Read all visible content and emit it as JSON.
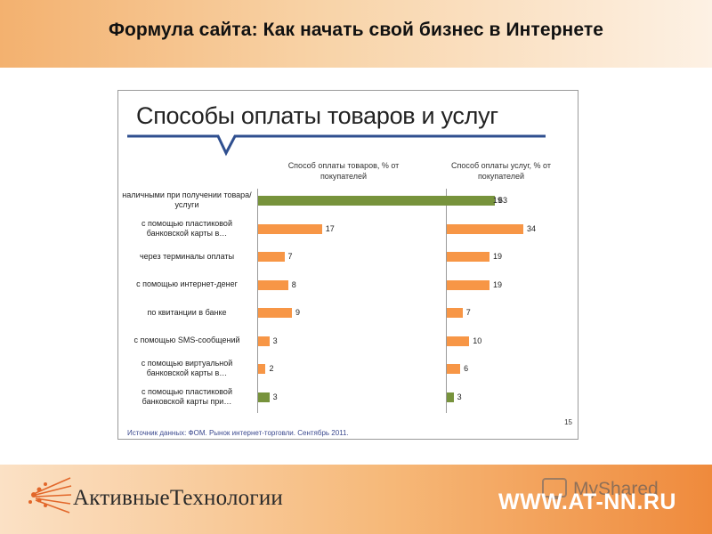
{
  "slide": {
    "title": "Формула сайта: Как начать свой бизнес в Интернете",
    "brand_text": "АктивныеТехнологии",
    "url": "WWW.AT-NN.RU",
    "watermark": "MyShared",
    "colors": {
      "accent_orange": "#f79646",
      "accent_green": "#77933c",
      "callout_blue": "#2f4f8f"
    }
  },
  "chart_data": {
    "type": "bar",
    "orientation": "horizontal",
    "title": "Способы оплаты товаров и услуг",
    "categories": [
      "наличными при получении товара/услуги",
      "с помощью пластиковой банковской карты в…",
      "через терминалы оплаты",
      "с помощью интернет-денег",
      "по квитанции в банке",
      "с помощью SMS-сообщений",
      "с помощью виртуальной банковской карты в…",
      "с помощью пластиковой банковской карты при…"
    ],
    "series": [
      {
        "name": "Способ оплаты товаров, % от покупателей",
        "values": [
          63,
          17,
          7,
          8,
          9,
          3,
          2,
          3
        ],
        "colors": [
          "#77933c",
          "#f79646",
          "#f79646",
          "#f79646",
          "#f79646",
          "#f79646",
          "#f79646",
          "#77933c"
        ]
      },
      {
        "name": "Способ оплаты услуг, % от покупателей",
        "values": [
          19,
          34,
          19,
          19,
          7,
          10,
          6,
          3
        ],
        "colors": [
          "#77933c",
          "#f79646",
          "#f79646",
          "#f79646",
          "#f79646",
          "#f79646",
          "#f79646",
          "#77933c"
        ]
      }
    ],
    "source": "Источник данных: ФОМ. Рынок интернет-торговли. Сентябрь 2011.",
    "page_number": "15",
    "grid": false,
    "legend": "none"
  }
}
